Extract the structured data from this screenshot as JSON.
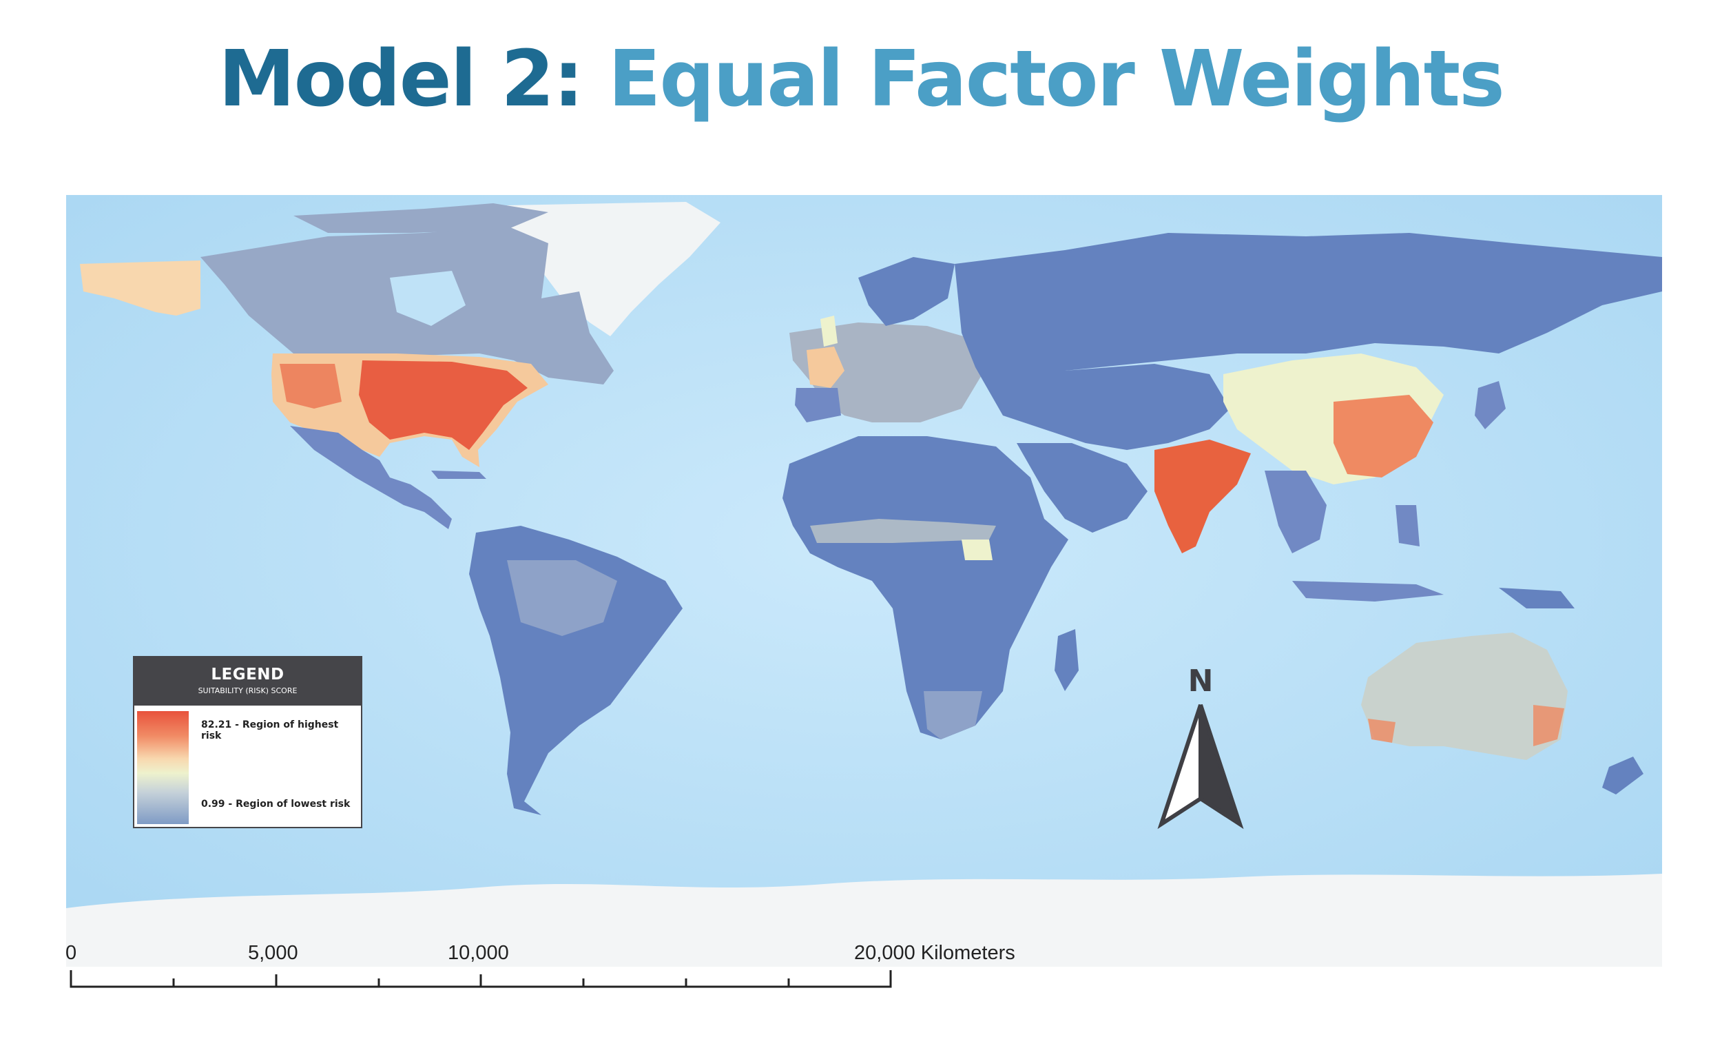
{
  "title": {
    "part1": "Model 2:",
    "part2": "Equal Factor Weights"
  },
  "legend": {
    "title": "LEGEND",
    "subtitle": "SUITABILITY (RISK) SCORE",
    "high_label": "82.21 - Region of highest risk",
    "low_label": "0.99 - Region of lowest risk",
    "ramp_colors": [
      "#e8523c",
      "#f18b65",
      "#f8d7ae",
      "#eef2cd",
      "#c5d1d9",
      "#7f9bc5"
    ]
  },
  "north_arrow": {
    "label": "N"
  },
  "scale_bar": {
    "labels": [
      "0",
      "5,000",
      "10,000",
      "20,000 Kilometers"
    ]
  },
  "colors": {
    "ocean": "#bfe2f7",
    "land_low": "#6482bf",
    "land_mid": "#eef2cd",
    "land_warm": "#f8d7ae",
    "land_high": "#e6553b",
    "ice": "#f3f5f6"
  }
}
